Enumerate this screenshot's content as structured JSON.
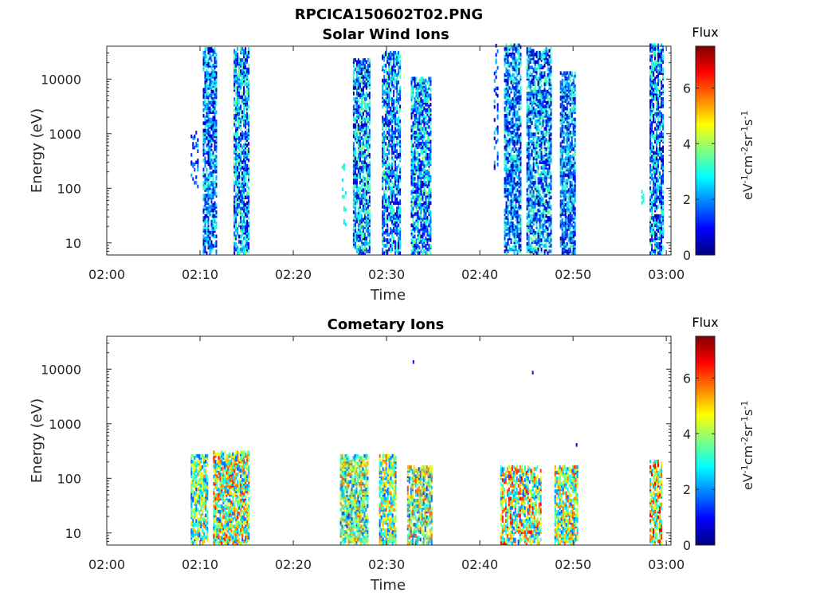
{
  "figure_title": "RPCICA150602T02.PNG",
  "colormap": [
    "#00007f",
    "#0000ff",
    "#007fff",
    "#00ffff",
    "#7fff7f",
    "#ffff00",
    "#ff7f00",
    "#ff0000",
    "#7f0000"
  ],
  "colorbar": {
    "label": "Flux",
    "unit_base": "eV",
    "unit_exps": [
      "-1",
      "-2",
      "-1",
      "-1"
    ],
    "unit_parts": [
      "cm",
      "sr",
      "s"
    ],
    "ticks": [
      "0",
      "2",
      "4",
      "6"
    ],
    "range": [
      0,
      7.5
    ]
  },
  "chart_data": [
    {
      "type": "heatmap",
      "title": "Solar Wind Ions",
      "xlabel": "Time",
      "ylabel": "Energy (eV)",
      "x_ticks": [
        "02:00",
        "02:10",
        "02:20",
        "02:30",
        "02:40",
        "02:50",
        "03:00"
      ],
      "y_ticks": [
        "10",
        "100",
        "1000",
        "10000"
      ],
      "yscale": "log",
      "ylim": [
        6,
        40000
      ],
      "xlim_minutes": [
        0,
        60.5
      ],
      "bursts": [
        {
          "t": [
            9.0,
            9.8
          ],
          "e": [
            100,
            1000
          ],
          "flux": [
            0.3,
            2.5
          ],
          "density": 0.25
        },
        {
          "t": [
            10.3,
            11.7
          ],
          "e": [
            6,
            35000
          ],
          "flux": [
            0.2,
            3.4
          ],
          "density": 0.55
        },
        {
          "t": [
            13.6,
            15.2
          ],
          "e": [
            6,
            35000
          ],
          "flux": [
            0.2,
            3.8
          ],
          "density": 0.6
        },
        {
          "t": [
            25.2,
            25.6
          ],
          "e": [
            20,
            300
          ],
          "flux": [
            2.5,
            3.2
          ],
          "density": 0.15
        },
        {
          "t": [
            26.4,
            28.2
          ],
          "e": [
            6,
            22000
          ],
          "flux": [
            0.2,
            4.0
          ],
          "density": 0.6
        },
        {
          "t": [
            29.5,
            31.4
          ],
          "e": [
            6,
            30000
          ],
          "flux": [
            0.3,
            3.6
          ],
          "density": 0.5
        },
        {
          "t": [
            32.6,
            34.8
          ],
          "e": [
            6,
            10000
          ],
          "flux": [
            0.2,
            3.8
          ],
          "density": 0.6
        },
        {
          "t": [
            41.5,
            42.0
          ],
          "e": [
            200,
            40000
          ],
          "flux": [
            0.3,
            2.5
          ],
          "density": 0.2
        },
        {
          "t": [
            42.6,
            44.4
          ],
          "e": [
            6,
            40000
          ],
          "flux": [
            0.2,
            3.6
          ],
          "density": 0.55
        },
        {
          "t": [
            45.0,
            47.6
          ],
          "e": [
            6,
            35000
          ],
          "flux": [
            0.2,
            3.8
          ],
          "density": 0.55
        },
        {
          "t": [
            48.6,
            50.2
          ],
          "e": [
            6,
            12000
          ],
          "flux": [
            0.2,
            3.6
          ],
          "density": 0.6
        },
        {
          "t": [
            57.3,
            57.6
          ],
          "e": [
            50,
            100
          ],
          "flux": [
            2.8,
            3.2
          ],
          "density": 0.2
        },
        {
          "t": [
            58.2,
            59.6
          ],
          "e": [
            6,
            40000
          ],
          "flux": [
            0.2,
            3.6
          ],
          "density": 0.55
        }
      ]
    },
    {
      "type": "heatmap",
      "title": "Cometary Ions",
      "xlabel": "Time",
      "ylabel": "Energy (eV)",
      "x_ticks": [
        "02:00",
        "02:10",
        "02:20",
        "02:30",
        "02:40",
        "02:50",
        "03:00"
      ],
      "y_ticks": [
        "10",
        "100",
        "1000",
        "10000"
      ],
      "yscale": "log",
      "ylim": [
        6,
        40000
      ],
      "xlim_minutes": [
        0,
        60.5
      ],
      "bursts": [
        {
          "t": [
            9.0,
            10.8
          ],
          "e": [
            6,
            250
          ],
          "flux": [
            1.5,
            5.5
          ],
          "density": 0.6
        },
        {
          "t": [
            11.4,
            15.3
          ],
          "e": [
            6,
            300
          ],
          "flux": [
            1.5,
            6.5
          ],
          "density": 0.65
        },
        {
          "t": [
            25.0,
            28.0
          ],
          "e": [
            6,
            250
          ],
          "flux": [
            1.5,
            6.0
          ],
          "density": 0.65
        },
        {
          "t": [
            29.2,
            31.0
          ],
          "e": [
            6,
            250
          ],
          "flux": [
            1.5,
            6.0
          ],
          "density": 0.6
        },
        {
          "t": [
            32.2,
            34.8
          ],
          "e": [
            6,
            150
          ],
          "flux": [
            1.5,
            6.0
          ],
          "density": 0.6
        },
        {
          "t": [
            42.2,
            46.5
          ],
          "e": [
            6,
            150
          ],
          "flux": [
            1.5,
            6.8
          ],
          "density": 0.5
        },
        {
          "t": [
            48.0,
            50.5
          ],
          "e": [
            6,
            150
          ],
          "flux": [
            1.5,
            6.2
          ],
          "density": 0.6
        },
        {
          "t": [
            58.2,
            59.5
          ],
          "e": [
            6,
            200
          ],
          "flux": [
            2.0,
            6.8
          ],
          "density": 0.5
        }
      ],
      "points": [
        {
          "t": 32.8,
          "e": 12500,
          "flux": 1.0
        },
        {
          "t": 45.6,
          "e": 8000,
          "flux": 1.0
        },
        {
          "t": 50.3,
          "e": 380,
          "flux": 1.0
        }
      ]
    }
  ]
}
